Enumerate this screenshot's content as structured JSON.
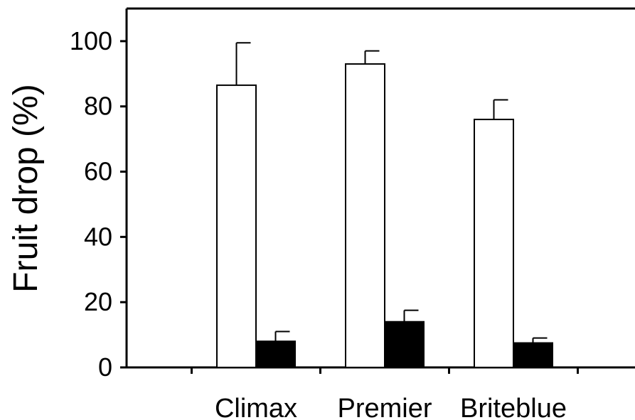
{
  "chart_data": {
    "type": "bar",
    "title": "",
    "xlabel": "",
    "ylabel": "Fruit drop (%)",
    "ylim": [
      0,
      110
    ],
    "yticks": [
      0,
      20,
      40,
      60,
      80,
      100
    ],
    "yticklabels": [
      "0",
      "20",
      "40",
      "60",
      "80",
      "100"
    ],
    "categories": [
      "Climax",
      "Premier",
      "Briteblue"
    ],
    "grid": false,
    "legend": "none",
    "series": [
      {
        "color": "#ffffff",
        "values": [
          86.5,
          93,
          76
        ],
        "errors": [
          13,
          4,
          6
        ]
      },
      {
        "color": "#000000",
        "values": [
          8,
          14,
          7.5
        ],
        "errors": [
          3,
          3.5,
          1.5
        ]
      }
    ]
  }
}
